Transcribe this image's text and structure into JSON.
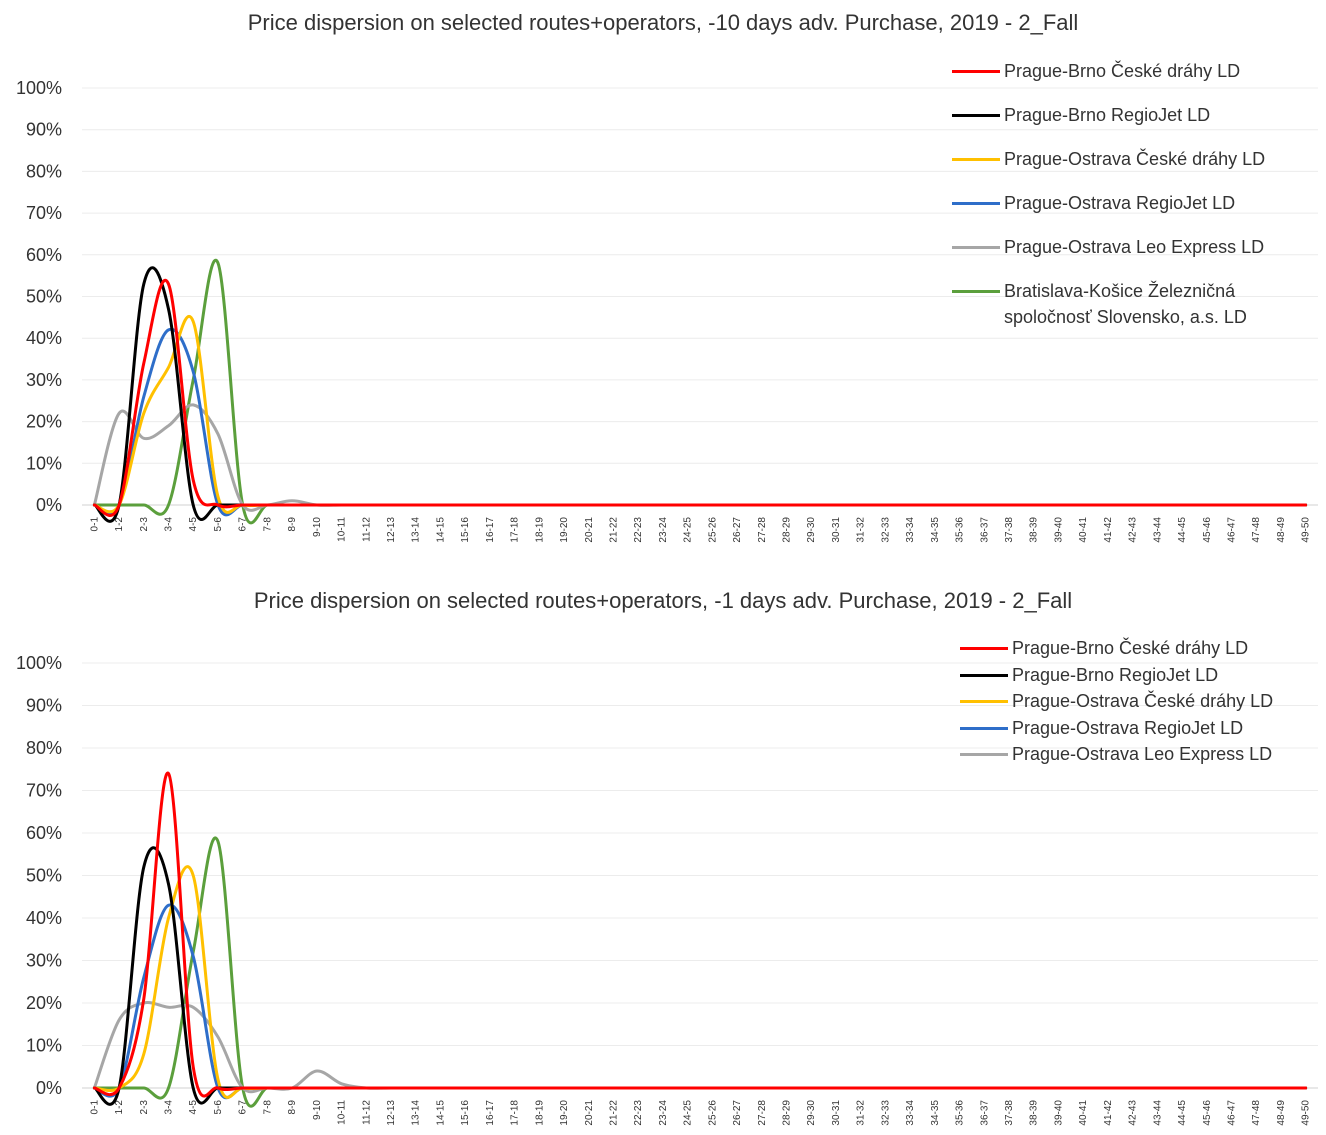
{
  "chart_data": [
    {
      "type": "line",
      "title": "Price dispersion on selected routes+operators, -10 days adv. Purchase, 2019 - 2_Fall",
      "xlabel": "",
      "ylabel": "",
      "ylim": [
        0,
        100
      ],
      "y_ticks": [
        "0%",
        "10%",
        "20%",
        "30%",
        "40%",
        "50%",
        "60%",
        "70%",
        "80%",
        "90%",
        "100%"
      ],
      "grid": true,
      "legend_position": "top-right",
      "categories": [
        "0-1",
        "1-2",
        "2-3",
        "3-4",
        "4-5",
        "5-6",
        "6-7",
        "7-8",
        "8-9",
        "9-10",
        "10-11",
        "11-12",
        "12-13",
        "13-14",
        "14-15",
        "15-16",
        "16-17",
        "17-18",
        "18-19",
        "19-20",
        "20-21",
        "21-22",
        "22-23",
        "23-24",
        "24-25",
        "25-26",
        "26-27",
        "27-28",
        "28-29",
        "29-30",
        "30-31",
        "31-32",
        "32-33",
        "33-34",
        "34-35",
        "35-36",
        "36-37",
        "37-38",
        "38-39",
        "39-40",
        "40-41",
        "41-42",
        "42-43",
        "43-44",
        "44-45",
        "45-46",
        "46-47",
        "47-48",
        "48-49",
        "49-50"
      ],
      "series": [
        {
          "name": "Prague-Brno České dráhy LD",
          "color": "#ff0000",
          "values": [
            0,
            0,
            34,
            53,
            6,
            0,
            0,
            0,
            0,
            0,
            0,
            0,
            0,
            0,
            0,
            0,
            0,
            0,
            0,
            0,
            0,
            0,
            0,
            0,
            0,
            0,
            0,
            0,
            0,
            0,
            0,
            0,
            0,
            0,
            0,
            0,
            0,
            0,
            0,
            0,
            0,
            0,
            0,
            0,
            0,
            0,
            0,
            0,
            0,
            0
          ]
        },
        {
          "name": "Prague-Brno RegioJet LD",
          "color": "#000000",
          "values": [
            0,
            0,
            53,
            47,
            0,
            0,
            0,
            0,
            0,
            0,
            0,
            0,
            0,
            0,
            0,
            0,
            0,
            0,
            0,
            0,
            0,
            0,
            0,
            0,
            0,
            0,
            0,
            0,
            0,
            0,
            0,
            0,
            0,
            0,
            0,
            0,
            0,
            0,
            0,
            0,
            0,
            0,
            0,
            0,
            0,
            0,
            0,
            0,
            0,
            0
          ]
        },
        {
          "name": "Prague-Ostrava České dráhy LD",
          "color": "#ffc000",
          "values": [
            0,
            0,
            22,
            33,
            44,
            2,
            0,
            0,
            0,
            0,
            0,
            0,
            0,
            0,
            0,
            0,
            0,
            0,
            0,
            0,
            0,
            0,
            0,
            0,
            0,
            0,
            0,
            0,
            0,
            0,
            0,
            0,
            0,
            0,
            0,
            0,
            0,
            0,
            0,
            0,
            0,
            0,
            0,
            0,
            0,
            0,
            0,
            0,
            0,
            0
          ]
        },
        {
          "name": "Prague-Ostrava RegioJet LD",
          "color": "#2e6ec9",
          "values": [
            0,
            0,
            26,
            42,
            32,
            0,
            0,
            0,
            0,
            0,
            0,
            0,
            0,
            0,
            0,
            0,
            0,
            0,
            0,
            0,
            0,
            0,
            0,
            0,
            0,
            0,
            0,
            0,
            0,
            0,
            0,
            0,
            0,
            0,
            0,
            0,
            0,
            0,
            0,
            0,
            0,
            0,
            0,
            0,
            0,
            0,
            0,
            0,
            0,
            0
          ]
        },
        {
          "name": "Prague-Ostrava Leo Express LD",
          "color": "#a6a6a6",
          "values": [
            0,
            22,
            16,
            19,
            24,
            17,
            0,
            0,
            1,
            0,
            0,
            0,
            0,
            0,
            0,
            0,
            0,
            0,
            0,
            0,
            0,
            0,
            0,
            0,
            0,
            0,
            0,
            0,
            0,
            0,
            0,
            0,
            0,
            0,
            0,
            0,
            0,
            0,
            0,
            0,
            0,
            0,
            0,
            0,
            0,
            0,
            0,
            0,
            0,
            0
          ]
        },
        {
          "name": "Bratislava-Košice Železničná spoločnosť Slovensko, a.s. LD",
          "color": "#5b9f3c",
          "values": [
            0,
            0,
            0,
            0,
            30,
            58,
            0,
            0,
            0,
            0,
            0,
            0,
            0,
            0,
            0,
            0,
            0,
            0,
            0,
            0,
            0,
            0,
            0,
            0,
            0,
            0,
            0,
            0,
            0,
            0,
            0,
            0,
            0,
            0,
            0,
            0,
            0,
            0,
            0,
            0,
            0,
            0,
            0,
            0,
            0,
            0,
            0,
            0,
            0,
            0
          ]
        }
      ]
    },
    {
      "type": "line",
      "title": "Price dispersion on selected routes+operators, -1 days adv. Purchase, 2019 - 2_Fall",
      "xlabel": "",
      "ylabel": "",
      "ylim": [
        0,
        100
      ],
      "y_ticks": [
        "0%",
        "10%",
        "20%",
        "30%",
        "40%",
        "50%",
        "60%",
        "70%",
        "80%",
        "90%",
        "100%"
      ],
      "grid": true,
      "legend_position": "top-right",
      "categories": [
        "0-1",
        "1-2",
        "2-3",
        "3-4",
        "4-5",
        "5-6",
        "6-7",
        "7-8",
        "8-9",
        "9-10",
        "10-11",
        "11-12",
        "12-13",
        "13-14",
        "14-15",
        "15-16",
        "16-17",
        "17-18",
        "18-19",
        "19-20",
        "20-21",
        "21-22",
        "22-23",
        "23-24",
        "24-25",
        "25-26",
        "26-27",
        "27-28",
        "28-29",
        "29-30",
        "30-31",
        "31-32",
        "32-33",
        "33-34",
        "34-35",
        "35-36",
        "36-37",
        "37-38",
        "38-39",
        "39-40",
        "40-41",
        "41-42",
        "42-43",
        "43-44",
        "44-45",
        "45-46",
        "46-47",
        "47-48",
        "48-49",
        "49-50"
      ],
      "series": [
        {
          "name": "Prague-Brno České dráhy LD",
          "color": "#ff0000",
          "values": [
            0,
            0,
            21,
            74,
            5,
            0,
            0,
            0,
            0,
            0,
            0,
            0,
            0,
            0,
            0,
            0,
            0,
            0,
            0,
            0,
            0,
            0,
            0,
            0,
            0,
            0,
            0,
            0,
            0,
            0,
            0,
            0,
            0,
            0,
            0,
            0,
            0,
            0,
            0,
            0,
            0,
            0,
            0,
            0,
            0,
            0,
            0,
            0,
            0,
            0
          ]
        },
        {
          "name": "Prague-Brno RegioJet LD",
          "color": "#000000",
          "values": [
            0,
            0,
            52,
            48,
            0,
            0,
            0,
            0,
            0,
            0,
            0,
            0,
            0,
            0,
            0,
            0,
            0,
            0,
            0,
            0,
            0,
            0,
            0,
            0,
            0,
            0,
            0,
            0,
            0,
            0,
            0,
            0,
            0,
            0,
            0,
            0,
            0,
            0,
            0,
            0,
            0,
            0,
            0,
            0,
            0,
            0,
            0,
            0,
            0,
            0
          ]
        },
        {
          "name": "Prague-Ostrava České dráhy LD",
          "color": "#ffc000",
          "values": [
            0,
            0,
            8,
            40,
            50,
            2,
            0,
            0,
            0,
            0,
            0,
            0,
            0,
            0,
            0,
            0,
            0,
            0,
            0,
            0,
            0,
            0,
            0,
            0,
            0,
            0,
            0,
            0,
            0,
            0,
            0,
            0,
            0,
            0,
            0,
            0,
            0,
            0,
            0,
            0,
            0,
            0,
            0,
            0,
            0,
            0,
            0,
            0,
            0,
            0
          ]
        },
        {
          "name": "Prague-Ostrava RegioJet LD",
          "color": "#2e6ec9",
          "values": [
            0,
            0,
            26,
            43,
            31,
            0,
            0,
            0,
            0,
            0,
            0,
            0,
            0,
            0,
            0,
            0,
            0,
            0,
            0,
            0,
            0,
            0,
            0,
            0,
            0,
            0,
            0,
            0,
            0,
            0,
            0,
            0,
            0,
            0,
            0,
            0,
            0,
            0,
            0,
            0,
            0,
            0,
            0,
            0,
            0,
            0,
            0,
            0,
            0,
            0
          ]
        },
        {
          "name": "Prague-Ostrava Leo Express LD",
          "color": "#a6a6a6",
          "values": [
            0,
            16,
            20,
            19,
            19,
            12,
            0,
            0,
            0,
            4,
            1,
            0,
            0,
            0,
            0,
            0,
            0,
            0,
            0,
            0,
            0,
            0,
            0,
            0,
            0,
            0,
            0,
            0,
            0,
            0,
            0,
            0,
            0,
            0,
            0,
            0,
            0,
            0,
            0,
            0,
            0,
            0,
            0,
            0,
            0,
            0,
            0,
            0,
            0,
            0
          ]
        },
        {
          "name": "",
          "color": "#5b9f3c",
          "values": [
            0,
            0,
            0,
            0,
            32,
            58,
            0,
            0,
            0,
            0,
            0,
            0,
            0,
            0,
            0,
            0,
            0,
            0,
            0,
            0,
            0,
            0,
            0,
            0,
            0,
            0,
            0,
            0,
            0,
            0,
            0,
            0,
            0,
            0,
            0,
            0,
            0,
            0,
            0,
            0,
            0,
            0,
            0,
            0,
            0,
            0,
            0,
            0,
            0,
            0
          ]
        }
      ]
    }
  ]
}
